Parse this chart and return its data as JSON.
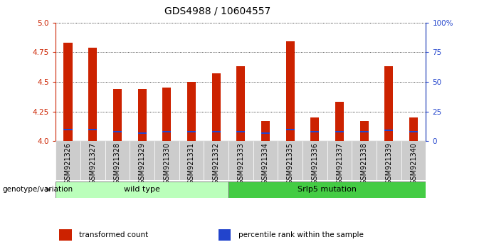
{
  "title": "GDS4988 / 10604557",
  "samples": [
    "GSM921326",
    "GSM921327",
    "GSM921328",
    "GSM921329",
    "GSM921330",
    "GSM921331",
    "GSM921332",
    "GSM921333",
    "GSM921334",
    "GSM921335",
    "GSM921336",
    "GSM921337",
    "GSM921338",
    "GSM921339",
    "GSM921340"
  ],
  "transformed_counts": [
    4.83,
    4.79,
    4.44,
    4.44,
    4.45,
    4.5,
    4.57,
    4.63,
    4.17,
    4.84,
    4.2,
    4.33,
    4.17,
    4.63,
    4.2
  ],
  "percentile_ranks": [
    10,
    10,
    8,
    7,
    8,
    8,
    8,
    8,
    7,
    10,
    8,
    8,
    8,
    9,
    8
  ],
  "ymin": 4.0,
  "ymax": 5.0,
  "bar_color": "#cc2200",
  "percentile_color": "#2244cc",
  "groups": [
    {
      "label": "wild type",
      "start": 0,
      "end": 7,
      "color": "#bbffbb"
    },
    {
      "label": "Srlp5 mutation",
      "start": 7,
      "end": 15,
      "color": "#44cc44"
    }
  ],
  "group_label": "genotype/variation",
  "legend_items": [
    {
      "label": "transformed count",
      "color": "#cc2200"
    },
    {
      "label": "percentile rank within the sample",
      "color": "#2244cc"
    }
  ],
  "yticks": [
    4.0,
    4.25,
    4.5,
    4.75,
    5.0
  ],
  "right_yticks": [
    0,
    25,
    50,
    75,
    100
  ],
  "right_ytick_labels": [
    "0",
    "25",
    "50",
    "75",
    "100%"
  ],
  "bar_width": 0.35,
  "background_color": "#ffffff",
  "title_fontsize": 10,
  "tick_fontsize": 7.5,
  "label_fontsize": 8
}
